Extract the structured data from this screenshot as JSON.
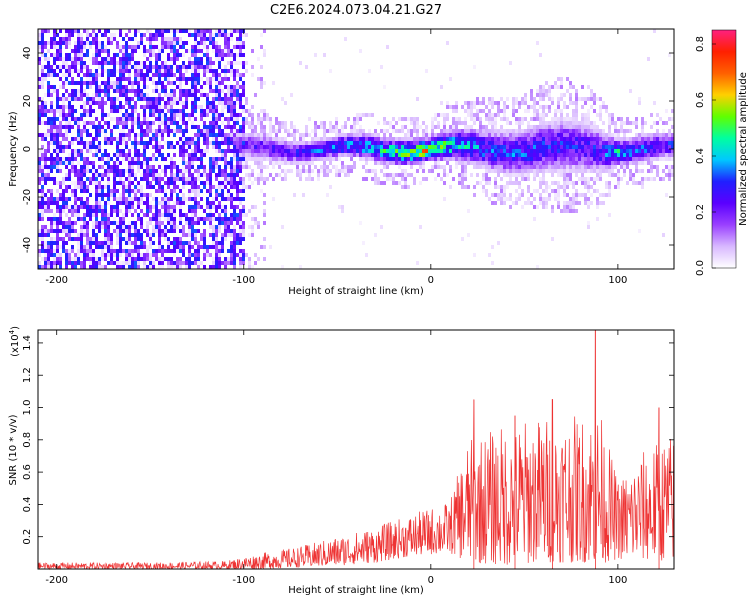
{
  "title": "C2E6.2024.073.04.21.G27",
  "chart_data": [
    {
      "type": "heatmap",
      "xlabel": "Height of straight line (km)",
      "ylabel": "Frequency (Hz)",
      "xlim": [
        -210,
        130
      ],
      "ylim": [
        -50,
        50
      ],
      "x_ticks": [
        -200,
        -100,
        0,
        100
      ],
      "y_ticks": [
        -40,
        -20,
        0,
        20,
        40
      ],
      "colorbar": {
        "label": "Normalized spectral amplitude",
        "range": [
          0,
          0.85
        ],
        "ticks": [
          "0.0",
          "0.2",
          "0.4",
          "0.6",
          "0.8"
        ],
        "colors": [
          "#ffffff",
          "#d8b8ff",
          "#9a40ff",
          "#5a00ff",
          "#2020ff",
          "#00c8ff",
          "#00ffa0",
          "#60ff00",
          "#ffd000",
          "#ff6000",
          "#ff2000",
          "#ff2080"
        ]
      },
      "band_profile": [
        {
          "x": -105,
          "bw": 6,
          "amp": 0.22
        },
        {
          "x": -90,
          "bw": 6,
          "amp": 0.25
        },
        {
          "x": -70,
          "bw": 5,
          "amp": 0.3
        },
        {
          "x": -50,
          "bw": 5,
          "amp": 0.38
        },
        {
          "x": -30,
          "bw": 6,
          "amp": 0.45
        },
        {
          "x": -10,
          "bw": 6,
          "amp": 0.55
        },
        {
          "x": 0,
          "bw": 5,
          "amp": 0.7
        },
        {
          "x": 10,
          "bw": 7,
          "amp": 0.5
        },
        {
          "x": 30,
          "bw": 9,
          "amp": 0.35
        },
        {
          "x": 50,
          "bw": 10,
          "amp": 0.35
        },
        {
          "x": 70,
          "bw": 12,
          "amp": 0.3
        },
        {
          "x": 90,
          "bw": 10,
          "amp": 0.3
        },
        {
          "x": 100,
          "bw": 6,
          "amp": 0.45
        },
        {
          "x": 115,
          "bw": 6,
          "amp": 0.35
        },
        {
          "x": 130,
          "bw": 6,
          "amp": 0.3
        }
      ],
      "noise_region": {
        "x_from": -210,
        "x_to": -100,
        "amp": 0.28
      }
    },
    {
      "type": "line",
      "xlabel": "Height of straight line (km)",
      "ylabel": "SNR (10 * v/v)",
      "scale_label": "(x10",
      "scale_exp": "4",
      "scale_close": ")",
      "xlim": [
        -210,
        130
      ],
      "ylim": [
        0,
        1.48
      ],
      "x_ticks": [
        -200,
        -100,
        0,
        100
      ],
      "y_ticks": [
        "0.2",
        "0.4",
        "0.6",
        "0.8",
        "1.0",
        "1.2",
        "1.4"
      ],
      "color": "#ee3333",
      "envelope": [
        {
          "x": -210,
          "lo": 0.0,
          "hi": 0.04
        },
        {
          "x": -150,
          "lo": 0.0,
          "hi": 0.04
        },
        {
          "x": -110,
          "lo": 0.0,
          "hi": 0.05
        },
        {
          "x": -90,
          "lo": 0.0,
          "hi": 0.1
        },
        {
          "x": -70,
          "lo": 0.01,
          "hi": 0.14
        },
        {
          "x": -50,
          "lo": 0.02,
          "hi": 0.2
        },
        {
          "x": -30,
          "lo": 0.04,
          "hi": 0.26
        },
        {
          "x": -10,
          "lo": 0.08,
          "hi": 0.34
        },
        {
          "x": 10,
          "lo": 0.1,
          "hi": 0.42
        },
        {
          "x": 20,
          "lo": 0.04,
          "hi": 0.8
        },
        {
          "x": 40,
          "lo": 0.02,
          "hi": 0.9
        },
        {
          "x": 60,
          "lo": 0.04,
          "hi": 0.95
        },
        {
          "x": 80,
          "lo": 0.04,
          "hi": 0.95
        },
        {
          "x": 90,
          "lo": 0.03,
          "hi": 1.0
        },
        {
          "x": 100,
          "lo": 0.06,
          "hi": 0.55
        },
        {
          "x": 115,
          "lo": 0.05,
          "hi": 0.75
        },
        {
          "x": 130,
          "lo": 0.05,
          "hi": 0.85
        }
      ],
      "peaks": [
        {
          "x": 23,
          "y": 1.05
        },
        {
          "x": 45,
          "y": 0.95
        },
        {
          "x": 65,
          "y": 1.05
        },
        {
          "x": 88,
          "y": 1.48
        },
        {
          "x": 122,
          "y": 1.0
        }
      ]
    }
  ]
}
